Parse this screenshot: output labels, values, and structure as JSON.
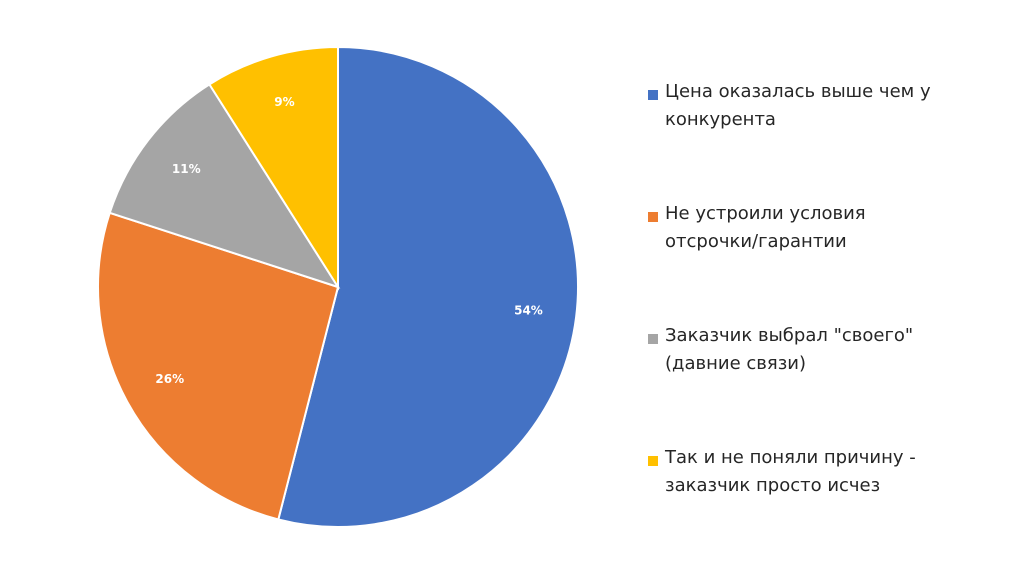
{
  "chart_data": {
    "type": "pie",
    "title": "",
    "start_angle_deg": 0,
    "direction": "clockwise",
    "legend_position": "right",
    "slices": [
      {
        "label": "Цена оказалась выше чем у конкурента",
        "value": 54,
        "value_label": "54%",
        "color": "#4472C4"
      },
      {
        "label": "Не устроили условия отсрочки/гарантии",
        "value": 26,
        "value_label": "26%",
        "color": "#ED7D31"
      },
      {
        "label": "Заказчик выбрал \"своего\" (давние связи)",
        "value": 11,
        "value_label": "11%",
        "color": "#A5A5A5"
      },
      {
        "label": "Так и не поняли причину - заказчик просто исчез",
        "value": 9,
        "value_label": "9%",
        "color": "#FFC000"
      }
    ]
  }
}
